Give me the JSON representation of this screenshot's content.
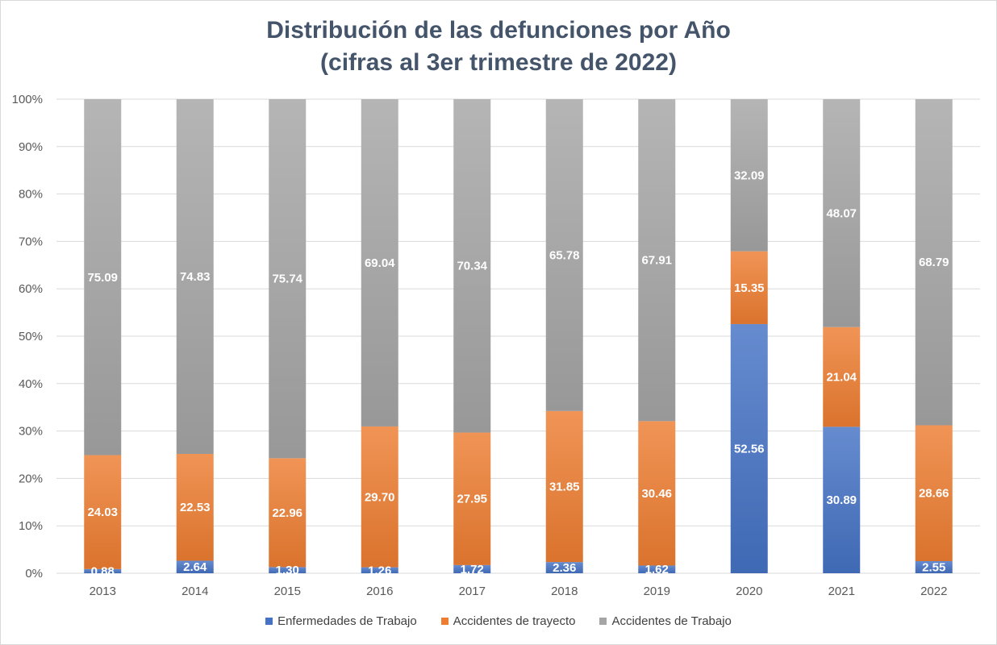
{
  "chart_data": {
    "type": "bar",
    "stacked": "percent",
    "title": "Distribución de las defunciones por Año",
    "subtitle": "(cifras al 3er trimestre de 2022)",
    "categories": [
      "2013",
      "2014",
      "2015",
      "2016",
      "2017",
      "2018",
      "2019",
      "2020",
      "2021",
      "2022"
    ],
    "series": [
      {
        "name": "Enfermedades de Trabajo",
        "color": "#4472c4",
        "values": [
          0.88,
          2.64,
          1.3,
          1.26,
          1.72,
          2.36,
          1.62,
          52.56,
          30.89,
          2.55
        ],
        "labels": [
          "0.88",
          "2.64",
          "1.30",
          "1.26",
          "1.72",
          "2.36",
          "1.62",
          "52.56",
          "30.89",
          "2.55"
        ]
      },
      {
        "name": "Accidentes de trayecto",
        "color": "#ed7d31",
        "values": [
          24.03,
          22.53,
          22.96,
          29.7,
          27.95,
          31.85,
          30.46,
          15.35,
          21.04,
          28.66
        ],
        "labels": [
          "24.03",
          "22.53",
          "22.96",
          "29.70",
          "27.95",
          "31.85",
          "30.46",
          "15.35",
          "21.04",
          "28.66"
        ]
      },
      {
        "name": "Accidentes de Trabajo",
        "color": "#a5a5a5",
        "values": [
          75.09,
          74.83,
          75.74,
          69.04,
          70.34,
          65.78,
          67.91,
          32.09,
          48.07,
          68.79
        ],
        "labels": [
          "75.09",
          "74.83",
          "75.74",
          "69.04",
          "70.34",
          "65.78",
          "67.91",
          "32.09",
          "48.07",
          "68.79"
        ]
      }
    ],
    "y_ticks": [
      "0%",
      "10%",
      "20%",
      "30%",
      "40%",
      "50%",
      "60%",
      "70%",
      "80%",
      "90%",
      "100%"
    ],
    "ylim": [
      0,
      100
    ],
    "grid": true,
    "legend": "bottom"
  }
}
